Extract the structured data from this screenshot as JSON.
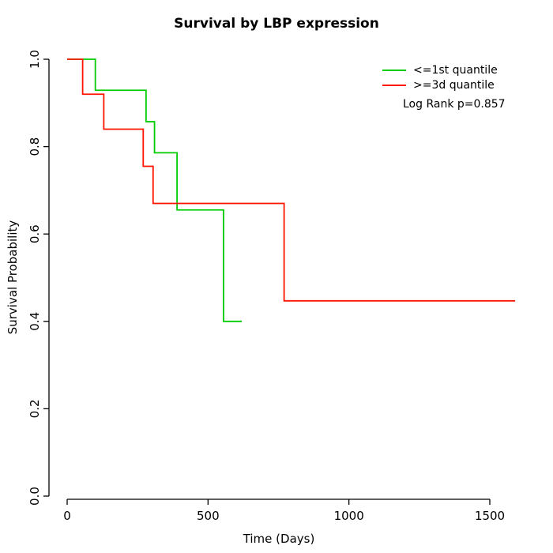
{
  "figure": {
    "title": "Survival by LBP expression",
    "x_axis_label": "Time (Days)",
    "y_axis_label": "Survival Probability",
    "annotation": "Log Rank p=0.857"
  },
  "legend": {
    "position": "top-right",
    "items": [
      {
        "label": "<=1st quantile",
        "color": "#00CC00"
      },
      {
        "label": ">=3d quantile",
        "color": "#FF1400"
      }
    ]
  },
  "chart_data": {
    "type": "line",
    "subtype": "kaplan-meier-step",
    "title": "Survival by LBP expression",
    "xlabel": "Time (Days)",
    "ylabel": "Survival Probability",
    "xlim": [
      0,
      1600
    ],
    "ylim": [
      0.0,
      1.0
    ],
    "x_ticks": [
      0,
      500,
      1000,
      1500
    ],
    "y_ticks": [
      0.0,
      0.2,
      0.4,
      0.6,
      0.8,
      1.0
    ],
    "grid": false,
    "legend_position": "top-right",
    "annotation": "Log Rank p=0.857",
    "axis_color": "#000000",
    "series": [
      {
        "name": "<=1st quantile",
        "color": "#00CC00",
        "steps": [
          {
            "t": 0,
            "s": 1.0
          },
          {
            "t": 100,
            "s": 0.929
          },
          {
            "t": 280,
            "s": 0.857
          },
          {
            "t": 310,
            "s": 0.786
          },
          {
            "t": 390,
            "s": 0.655
          },
          {
            "t": 555,
            "s": 0.4
          }
        ],
        "t_end": 620
      },
      {
        "name": ">=3d quantile",
        "color": "#FF1400",
        "steps": [
          {
            "t": 0,
            "s": 1.0
          },
          {
            "t": 55,
            "s": 0.92
          },
          {
            "t": 130,
            "s": 0.84
          },
          {
            "t": 270,
            "s": 0.755
          },
          {
            "t": 305,
            "s": 0.67
          },
          {
            "t": 770,
            "s": 0.447
          }
        ],
        "t_end": 1590
      }
    ]
  }
}
